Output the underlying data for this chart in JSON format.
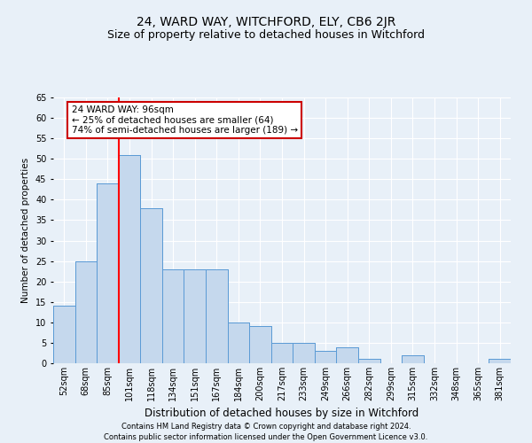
{
  "title": "24, WARD WAY, WITCHFORD, ELY, CB6 2JR",
  "subtitle": "Size of property relative to detached houses in Witchford",
  "xlabel": "Distribution of detached houses by size in Witchford",
  "ylabel": "Number of detached properties",
  "categories": [
    "52sqm",
    "68sqm",
    "85sqm",
    "101sqm",
    "118sqm",
    "134sqm",
    "151sqm",
    "167sqm",
    "184sqm",
    "200sqm",
    "217sqm",
    "233sqm",
    "249sqm",
    "266sqm",
    "282sqm",
    "299sqm",
    "315sqm",
    "332sqm",
    "348sqm",
    "365sqm",
    "381sqm"
  ],
  "values": [
    14,
    25,
    44,
    51,
    38,
    23,
    23,
    23,
    10,
    9,
    5,
    5,
    3,
    4,
    1,
    0,
    2,
    0,
    0,
    0,
    1
  ],
  "bar_color": "#c5d8ed",
  "bar_edge_color": "#5b9bd5",
  "background_color": "#e8f0f8",
  "grid_color": "#ffffff",
  "annotation_text": "24 WARD WAY: 96sqm\n← 25% of detached houses are smaller (64)\n74% of semi-detached houses are larger (189) →",
  "annotation_box_color": "#ffffff",
  "annotation_box_edge": "#cc0000",
  "footer_line1": "Contains HM Land Registry data © Crown copyright and database right 2024.",
  "footer_line2": "Contains public sector information licensed under the Open Government Licence v3.0.",
  "ylim": [
    0,
    65
  ],
  "yticks": [
    0,
    5,
    10,
    15,
    20,
    25,
    30,
    35,
    40,
    45,
    50,
    55,
    60,
    65
  ],
  "red_line_index": 2.5,
  "title_fontsize": 10,
  "subtitle_fontsize": 9,
  "xlabel_fontsize": 8.5,
  "ylabel_fontsize": 7.5,
  "tick_fontsize": 7,
  "annotation_fontsize": 7.5,
  "footer_fontsize": 6
}
